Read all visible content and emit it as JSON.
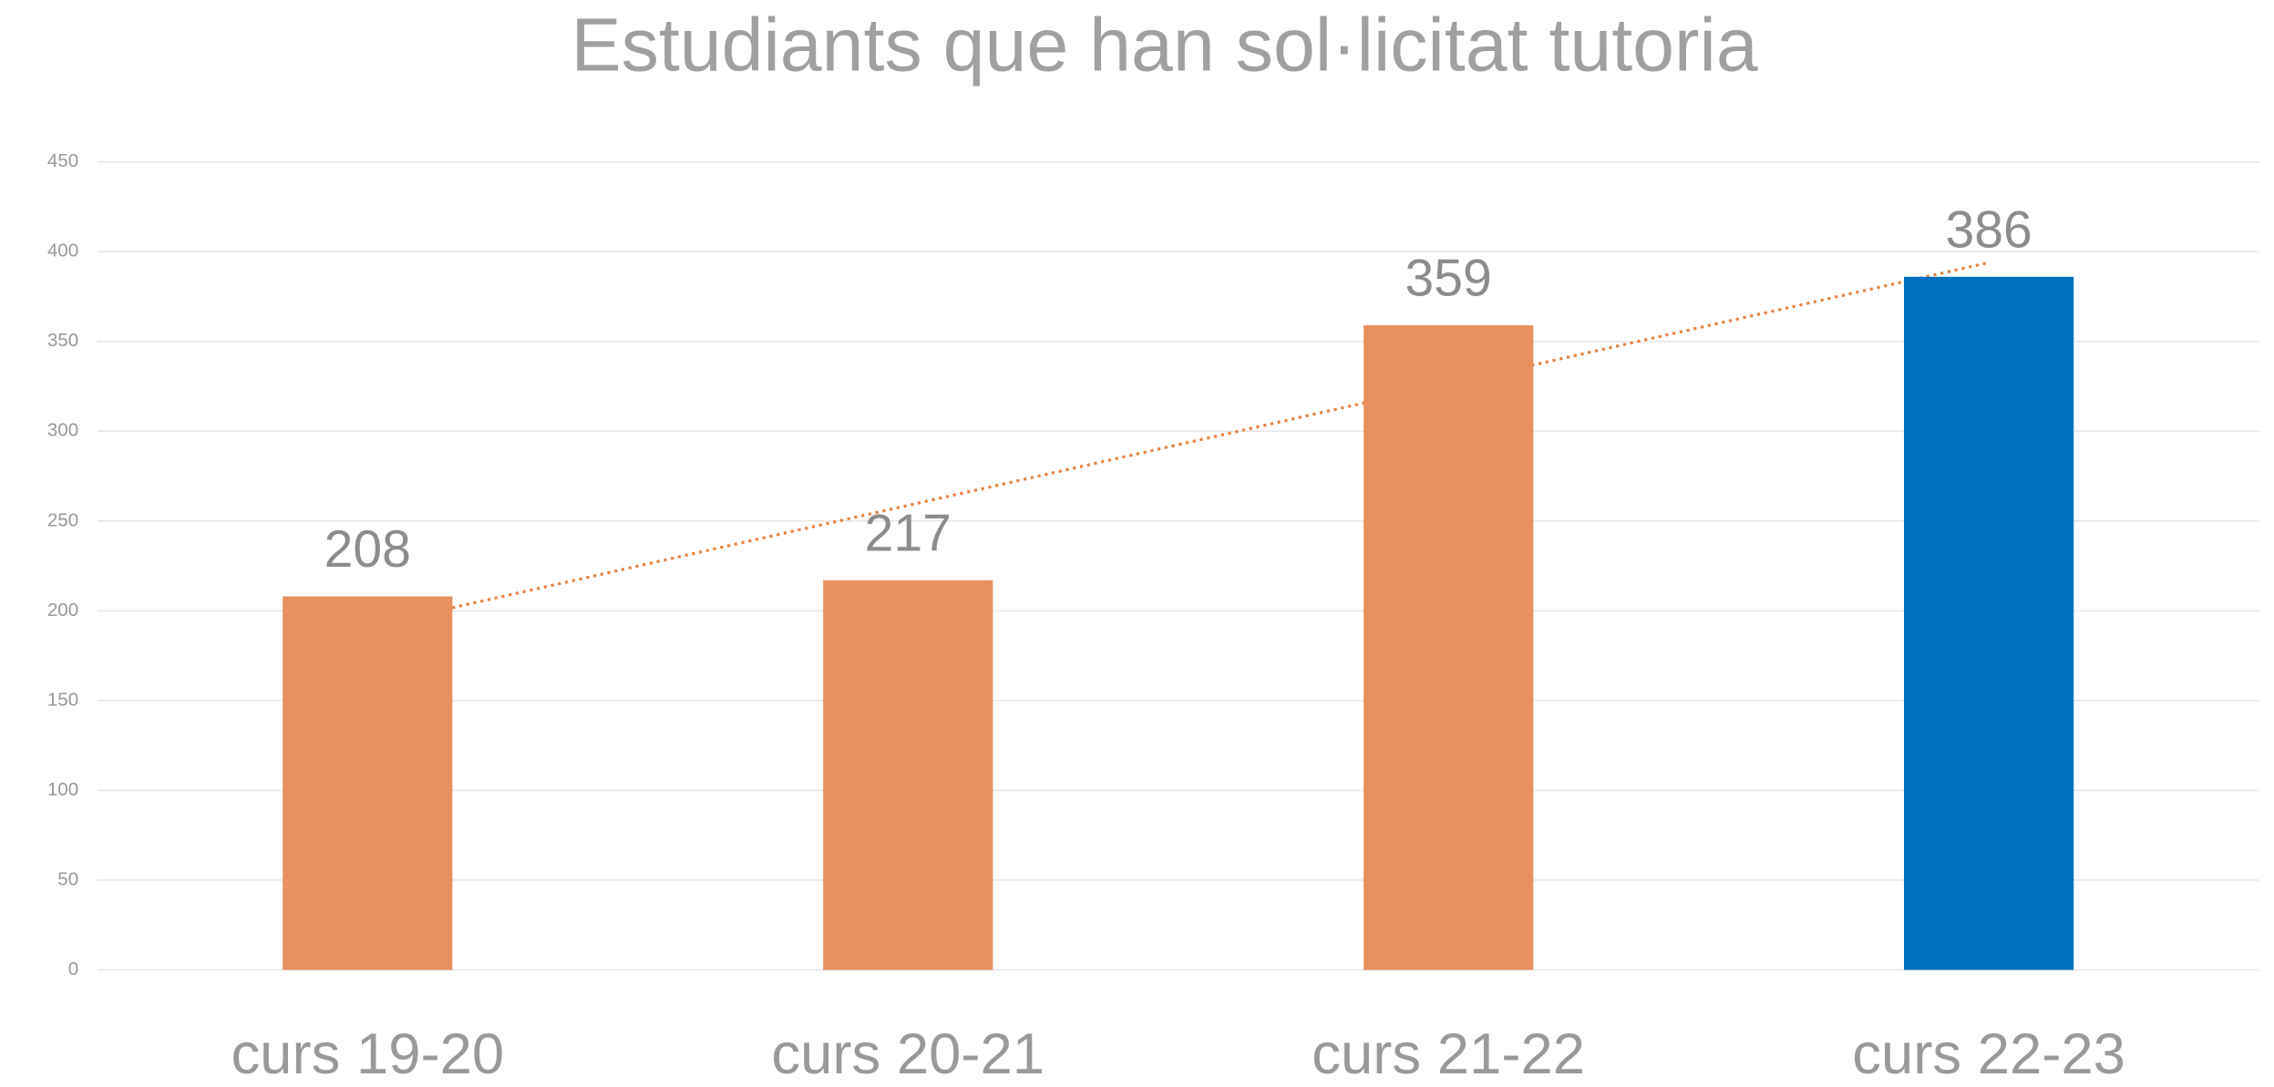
{
  "chart_data": {
    "type": "bar",
    "title": "Estudiants que han sol·licitat tutoria",
    "categories": [
      "curs 19-20",
      "curs 20-21",
      "curs 21-22",
      "curs 22-23"
    ],
    "values": [
      208,
      217,
      359,
      386
    ],
    "colors": [
      "#e8905e",
      "#e8905e",
      "#e8905e",
      "#0070c0"
    ],
    "ylim": [
      0,
      450
    ],
    "yticks": [
      0,
      50,
      100,
      150,
      200,
      250,
      300,
      350,
      400,
      450
    ],
    "grid": true,
    "trendline": "linear",
    "trendline_color": "#e8823e"
  }
}
